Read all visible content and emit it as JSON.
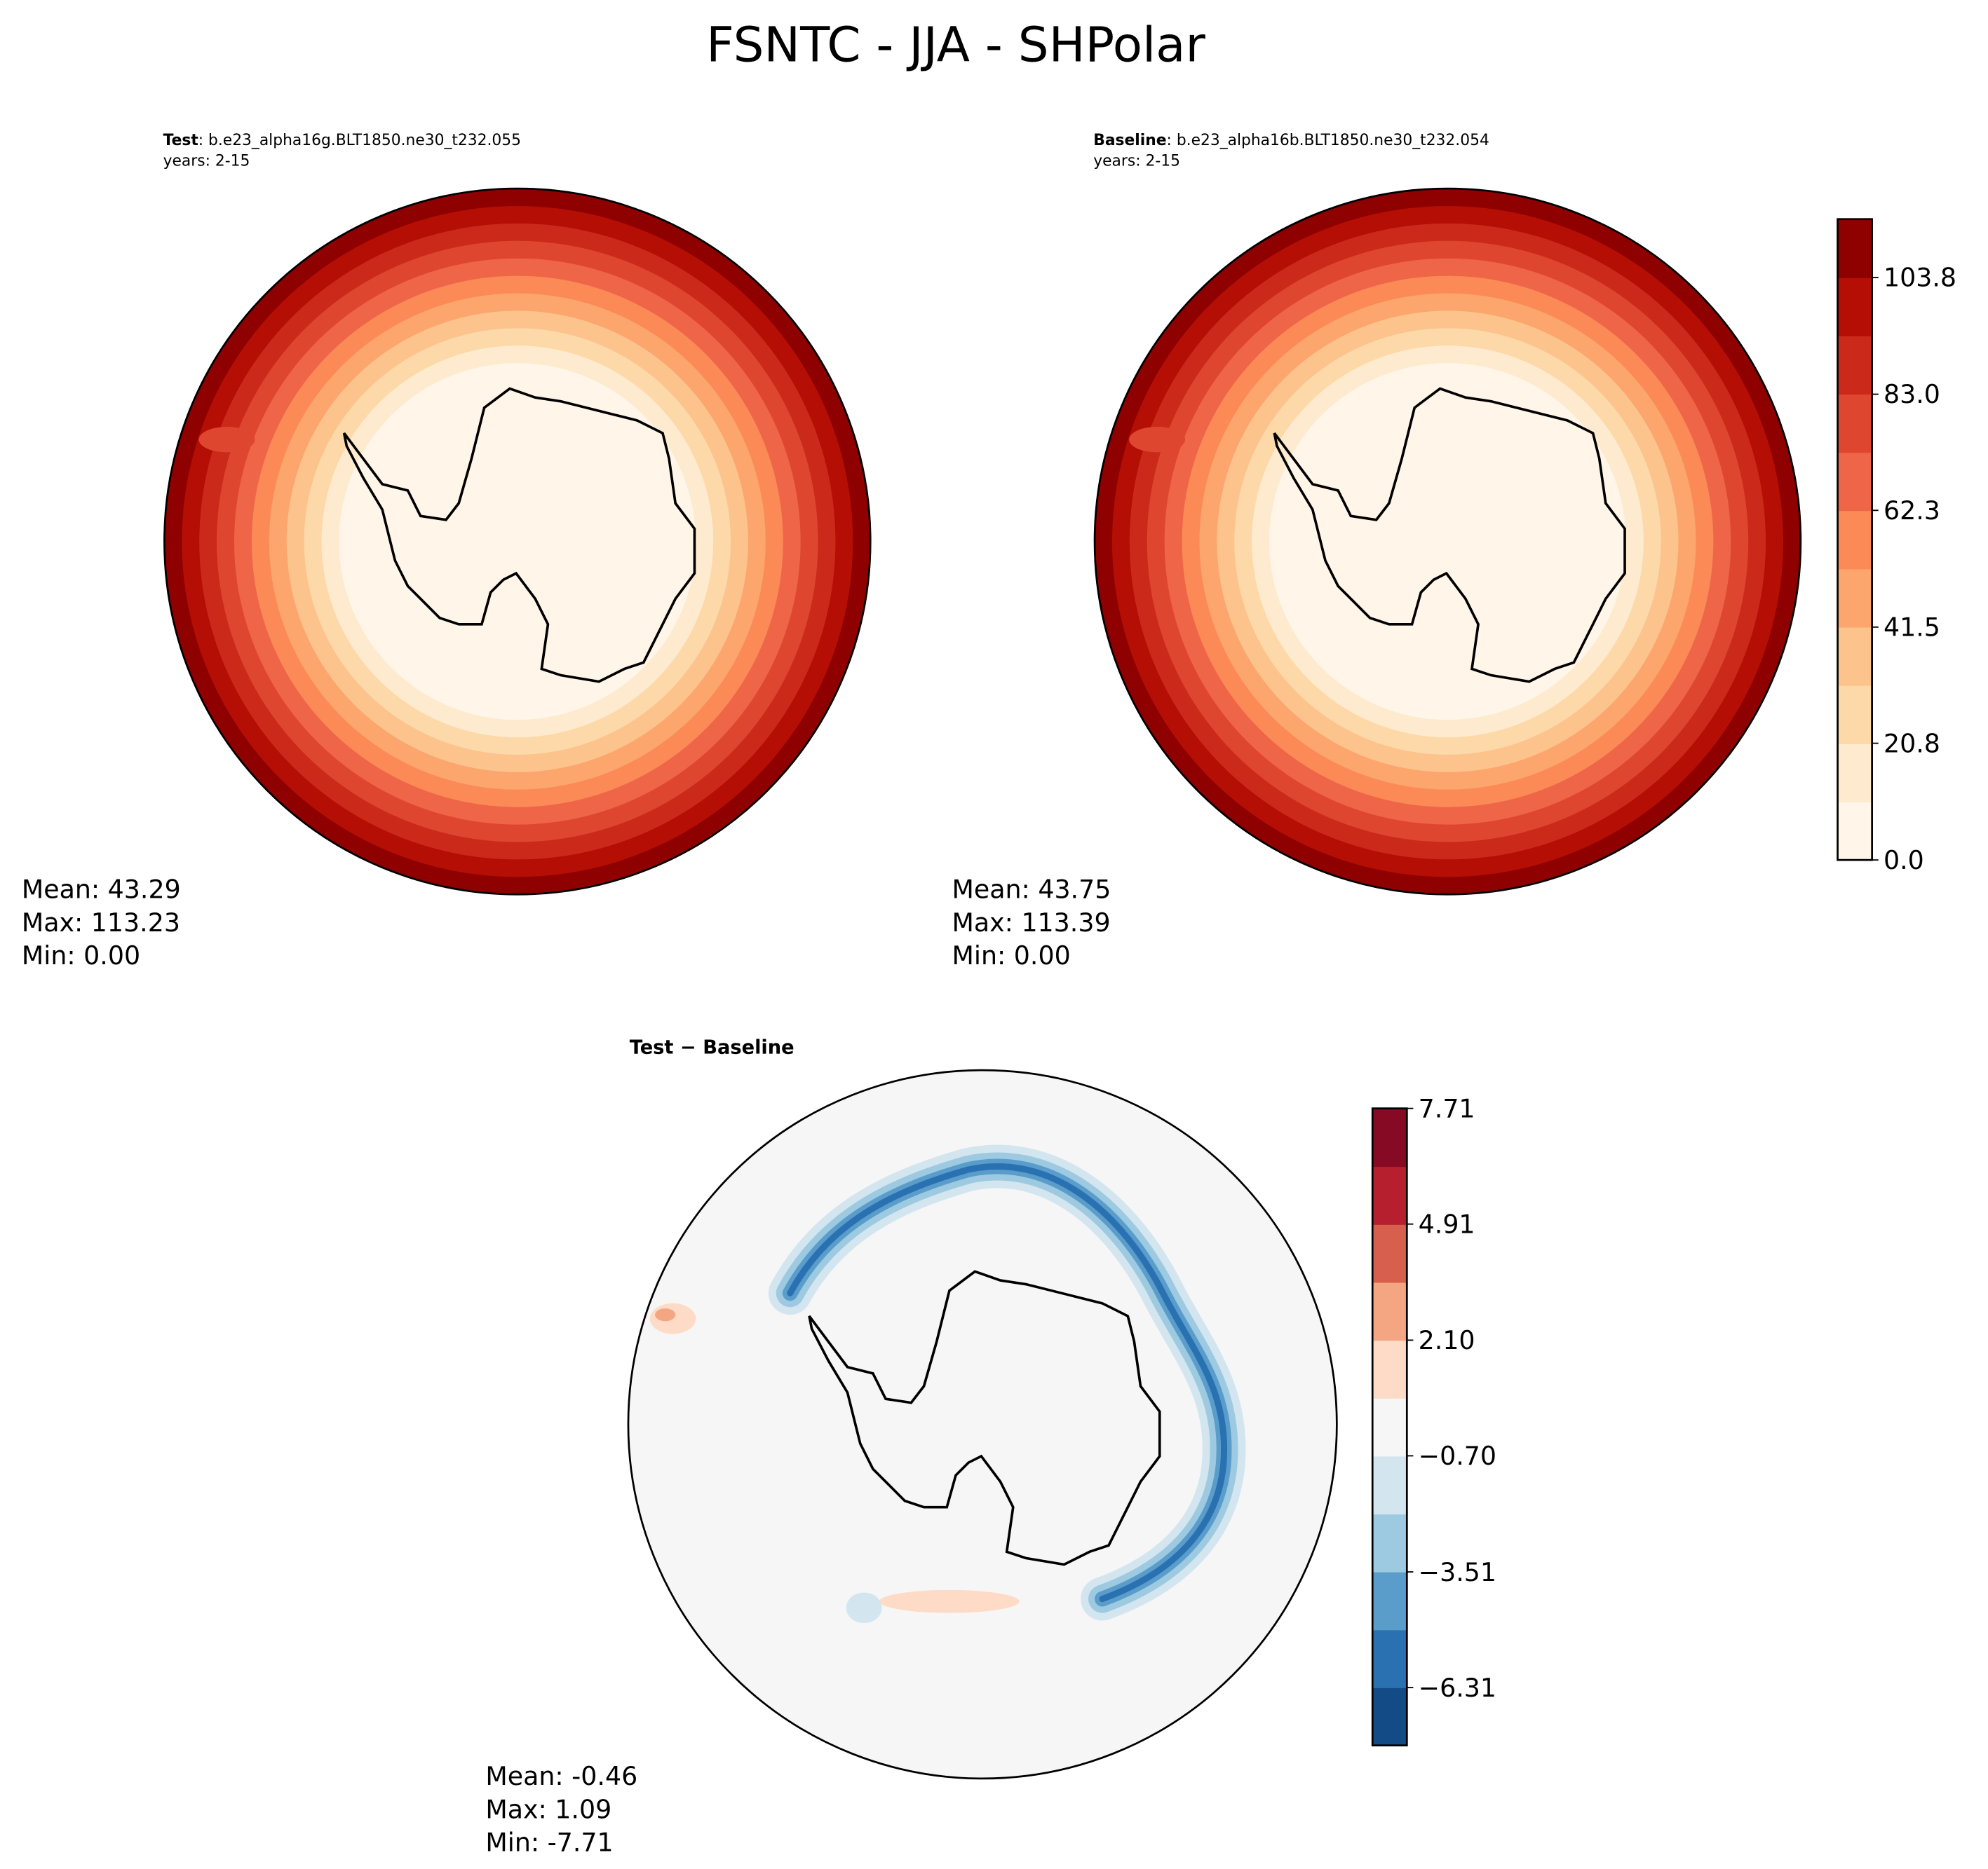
{
  "title": "FSNTC - JJA - SHPolar",
  "panels": [
    {
      "label": "Test",
      "case": ": b.e23_alpha16g.BLT1850.ne30_t232.055",
      "years": "years: 2-15",
      "stats": [
        "Mean: 43.29",
        "Max: 113.23",
        "Min:  0.00"
      ]
    },
    {
      "label": "Baseline",
      "case": ": b.e23_alpha16b.BLT1850.ne30_t232.054",
      "years": "years: 2-15",
      "stats": [
        "Mean: 43.75",
        "Max: 113.39",
        "Min:  0.00"
      ]
    },
    {
      "label": "Test − Baseline",
      "stats": [
        "Mean: -0.46",
        "Max:  1.09",
        "Min: -7.71"
      ]
    }
  ],
  "colorbars": [
    {
      "lim": [
        0,
        114.2
      ],
      "ticks": [
        {
          "value": 0,
          "label": "0.0"
        },
        20.8,
        41.5,
        62.3,
        {
          "value": 83,
          "label": "83.0"
        },
        103.8
      ],
      "colors": [
        "#fff5e8",
        "#feebcf",
        "#fdd9aa",
        "#fdc38d",
        "#fca56c",
        "#fb8a57",
        "#ef6548",
        "#df4630",
        "#cb2a1b",
        "#b50e05",
        "#8f0000"
      ]
    },
    {
      "lim": [
        -7.71,
        7.71
      ],
      "ticks": [
        {
          "value": -6.31,
          "label": "−6.31"
        },
        {
          "value": -3.51,
          "label": "−3.51"
        },
        {
          "value": -0.7,
          "label": "−0.70"
        },
        {
          "value": 2.1,
          "label": "2.10"
        },
        4.91,
        7.71
      ],
      "colors": [
        "#134b87",
        "#2a71b2",
        "#5a9dcb",
        "#9ecae1",
        "#d3e6f0",
        "#f6f6f6",
        "#fddbc7",
        "#f4a683",
        "#d6604d",
        "#b6202e",
        "#870a24"
      ]
    }
  ]
}
